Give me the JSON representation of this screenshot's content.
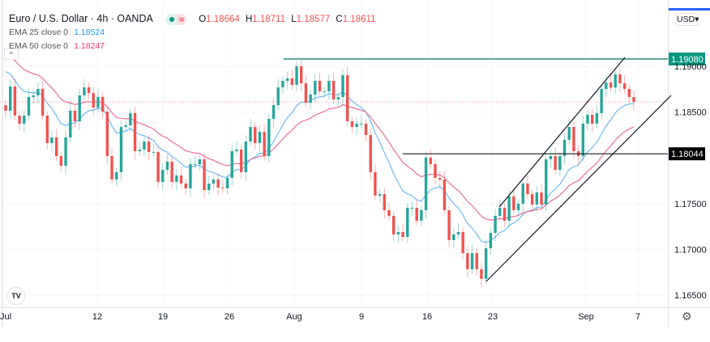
{
  "header": {
    "symbol_title": "Euro / U.S. Dollar · 4h · OANDA",
    "ohlc": {
      "o_label": "O",
      "o": "1.18664",
      "h_label": "H",
      "h": "1.18711",
      "l_label": "L",
      "l": "1.18577",
      "c_label": "C",
      "c": "1.18611"
    },
    "indicators": [
      {
        "label": "EMA 25 close 0",
        "value": "1.18524",
        "color": "#2196f3"
      },
      {
        "label": "EMA 50 close 0",
        "value": "1.18247",
        "color": "#f23670"
      }
    ],
    "status_icons": [
      "market-open-dot-icon",
      "data-delayed-icon"
    ],
    "collapse_icon": "chevron-up-icon"
  },
  "price_axis": {
    "currency_button": "USD",
    "ticks": [
      "1.19000",
      "1.18500",
      "1.17500",
      "1.17000",
      "1.16500"
    ],
    "labels": [
      {
        "text": "1.19080",
        "color": "#089981"
      },
      {
        "text": "1.18044",
        "color": "#000000"
      }
    ]
  },
  "time_axis": {
    "ticks": [
      "Jul",
      "12",
      "19",
      "26",
      "Aug",
      "9",
      "16",
      "23",
      "Sep",
      "7"
    ]
  },
  "footer": {
    "logo": "TV",
    "settings_icon": "gear-icon"
  },
  "chart_data": {
    "type": "candlestick",
    "title": "Euro / U.S. Dollar · 4h · OANDA",
    "ylim": [
      1.164,
      1.1925
    ],
    "up_color": "#26a69a",
    "down_color": "#ef5350",
    "last_price": 1.18611,
    "closes": [
      1.18514,
      1.18779,
      1.18461,
      1.18373,
      1.18461,
      1.18664,
      1.18682,
      1.18753,
      1.18461,
      1.18161,
      1.18223,
      1.18019,
      1.17913,
      1.18223,
      1.18514,
      1.18399,
      1.18682,
      1.1877,
      1.18708,
      1.18549,
      1.18664,
      1.18505,
      1.18019,
      1.17763,
      1.17843,
      1.18337,
      1.18355,
      1.18488,
      1.18072,
      1.1809,
      1.18178,
      1.18064,
      1.18064,
      1.17737,
      1.17869,
      1.17958,
      1.17737,
      1.17807,
      1.17719,
      1.17666,
      1.17931,
      1.17931,
      1.17984,
      1.17648,
      1.17719,
      1.17763,
      1.17675,
      1.17666,
      1.17781,
      1.18072,
      1.1809,
      1.17843,
      1.18178,
      1.18337,
      1.18161,
      1.18284,
      1.18019,
      1.18426,
      1.18576,
      1.1877,
      1.18841,
      1.18867,
      1.18797,
      1.19,
      1.18814,
      1.18602,
      1.18691,
      1.18841,
      1.18726,
      1.18726,
      1.18841,
      1.18638,
      1.18664,
      1.18903,
      1.18399,
      1.18337,
      1.18373,
      1.18373,
      1.18249,
      1.17843,
      1.17587,
      1.17604,
      1.17428,
      1.17366,
      1.17163,
      1.17189,
      1.17136,
      1.17454,
      1.17454,
      1.17313,
      1.17428,
      1.18002,
      1.17931,
      1.17781,
      1.17763,
      1.17428,
      1.17101,
      1.17163,
      1.17189,
      1.16959,
      1.16783,
      1.16959,
      1.16783,
      1.16677,
      1.17012,
      1.1718,
      1.17366,
      1.17454,
      1.17313,
      1.17578,
      1.17428,
      1.17498,
      1.17719,
      1.17604,
      1.17489,
      1.17622,
      1.17489,
      1.17984,
      1.18019,
      1.17869,
      1.18019,
      1.18197,
      1.18337,
      1.18072,
      1.18019,
      1.18373,
      1.1847,
      1.18373,
      1.18488,
      1.18753,
      1.18823,
      1.18768,
      1.18912,
      1.18814,
      1.18753,
      1.18664,
      1.18611
    ],
    "ema": [
      {
        "name": "EMA 25 close 0",
        "period": 25,
        "color": "#64b5f6"
      },
      {
        "name": "EMA 50 close 0",
        "period": 50,
        "color": "#f06292"
      }
    ],
    "horizontal_levels": [
      1.1908,
      1.18044
    ],
    "drawings": [
      "ascending-channel"
    ]
  }
}
